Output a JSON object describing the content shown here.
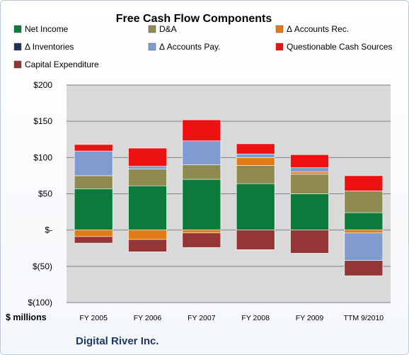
{
  "chart_data": {
    "type": "bar",
    "stacked": true,
    "title": "Free Cash Flow Components",
    "footer": "Digital River Inc.",
    "unit_label": "$ millions",
    "categories": [
      "FY 2005",
      "FY 2006",
      "FY 2007",
      "FY 2008",
      "FY 2009",
      "TTM 9/2010"
    ],
    "y_tick_labels": [
      "$200",
      "$150",
      "$100",
      "$50",
      "$-",
      "$(50)",
      "$(100)"
    ],
    "ylim": [
      -100,
      200
    ],
    "grid": true,
    "series": [
      {
        "name": "Net Income",
        "color": "#0b7a3a",
        "values": [
          57,
          61,
          70,
          64,
          50,
          24
        ]
      },
      {
        "name": "D&A",
        "color": "#8f8a4f",
        "values": [
          18,
          23,
          20,
          25,
          27,
          30
        ]
      },
      {
        "name": "Δ Accounts Rec.",
        "color": "#e27a16",
        "values": [
          -9,
          -13,
          -4,
          11,
          3,
          -4
        ]
      },
      {
        "name": "Δ Inventories",
        "color": "#1f3251",
        "values": [
          0,
          0,
          0,
          0,
          0,
          0
        ]
      },
      {
        "name": "Δ Accounts Pay.",
        "color": "#7f9bcf",
        "values": [
          34,
          4,
          33,
          5,
          6,
          -38
        ]
      },
      {
        "name": "Questionable Cash Sources",
        "color": "#ee1111",
        "values": [
          9,
          25,
          29,
          14,
          18,
          21
        ]
      },
      {
        "name": "Capital Expenditure",
        "color": "#953636",
        "values": [
          -9,
          -17,
          -20,
          -27,
          -32,
          -21
        ]
      }
    ]
  }
}
